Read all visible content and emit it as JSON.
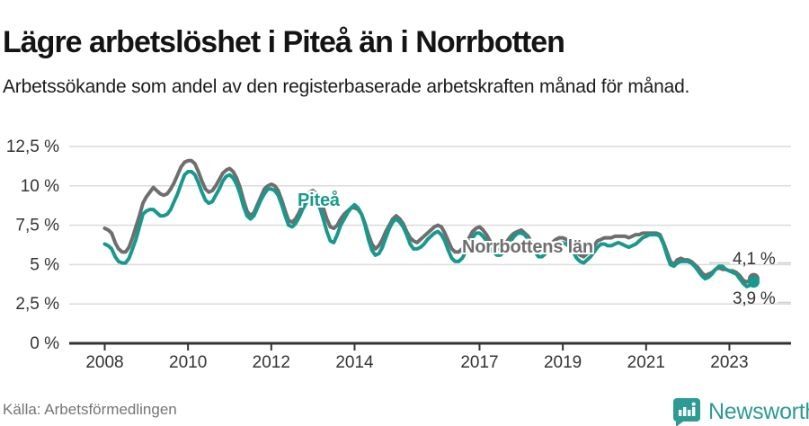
{
  "header": {
    "title": "Lägre arbetslöshet i Piteå än i Norrbotten",
    "subtitle": "Arbetssökande som andel av den registerbaserade arbetskraften månad för månad."
  },
  "chart_data": {
    "type": "line",
    "unit": "%",
    "frequency": "monthly",
    "x_start": "2008-01",
    "x_end": "2023-08",
    "ylim": [
      0,
      12.5
    ],
    "grid": "horizontal",
    "yticks": [
      {
        "value": 0,
        "label": "0 %"
      },
      {
        "value": 2.5,
        "label": "2,5 %"
      },
      {
        "value": 5,
        "label": "5 %"
      },
      {
        "value": 7.5,
        "label": "7,5 %"
      },
      {
        "value": 10,
        "label": "10 %"
      },
      {
        "value": 12.5,
        "label": "12,5 %"
      }
    ],
    "xticks": [
      {
        "year": 2008,
        "label": "2008"
      },
      {
        "year": 2010,
        "label": "2010"
      },
      {
        "year": 2012,
        "label": "2012"
      },
      {
        "year": 2014,
        "label": "2014"
      },
      {
        "year": 2017,
        "label": "2017"
      },
      {
        "year": 2019,
        "label": "2019"
      },
      {
        "year": 2021,
        "label": "2021"
      },
      {
        "year": 2023,
        "label": "2023"
      }
    ],
    "series": [
      {
        "name": "Norrbottens län",
        "color": "#6E6E6E",
        "end_label": "4,1 %",
        "end_value": 4.1,
        "values": [
          7.3,
          7.2,
          7.0,
          6.4,
          6.0,
          5.8,
          5.8,
          6.1,
          6.7,
          7.4,
          8.1,
          8.9,
          9.3,
          9.6,
          9.9,
          9.7,
          9.5,
          9.4,
          9.5,
          9.8,
          10.2,
          10.7,
          11.2,
          11.5,
          11.6,
          11.6,
          11.4,
          10.9,
          10.3,
          9.8,
          9.6,
          9.7,
          10.0,
          10.4,
          10.8,
          11.0,
          11.1,
          10.9,
          10.5,
          9.9,
          9.1,
          8.4,
          8.1,
          8.3,
          8.8,
          9.3,
          9.8,
          10.0,
          10.1,
          10.0,
          9.7,
          9.1,
          8.4,
          7.8,
          7.7,
          7.9,
          8.3,
          8.8,
          9.3,
          9.6,
          9.7,
          9.5,
          9.1,
          8.6,
          7.9,
          7.4,
          7.3,
          7.5,
          7.9,
          8.2,
          8.4,
          8.6,
          8.6,
          8.5,
          8.2,
          7.6,
          6.9,
          6.3,
          6.0,
          6.2,
          6.6,
          7.1,
          7.5,
          7.9,
          8.1,
          7.9,
          7.6,
          7.1,
          6.7,
          6.5,
          6.4,
          6.6,
          6.8,
          7.0,
          7.2,
          7.4,
          7.5,
          7.4,
          7.0,
          6.5,
          6.0,
          5.8,
          5.8,
          6.0,
          6.3,
          6.7,
          7.1,
          7.3,
          7.4,
          7.2,
          6.9,
          6.5,
          6.2,
          6.0,
          6.0,
          6.2,
          6.5,
          6.8,
          7.0,
          7.1,
          7.2,
          7.0,
          6.8,
          6.4,
          6.1,
          5.9,
          5.9,
          6.0,
          6.2,
          6.4,
          6.6,
          6.7,
          6.7,
          6.6,
          6.4,
          6.1,
          5.8,
          5.6,
          5.5,
          5.7,
          5.9,
          6.2,
          6.5,
          6.6,
          6.7,
          6.7,
          6.7,
          6.8,
          6.8,
          6.8,
          6.8,
          6.7,
          6.8,
          6.9,
          6.9,
          7.0,
          7.0,
          7.0,
          7.0,
          7.0,
          6.9,
          6.4,
          5.8,
          5.2,
          5.0,
          5.3,
          5.4,
          5.3,
          5.3,
          5.2,
          5.0,
          4.8,
          4.5,
          4.3,
          4.4,
          4.5,
          4.7,
          4.8,
          4.7,
          4.7,
          4.6,
          4.6,
          4.5,
          4.3,
          4.0,
          3.9,
          4.0,
          4.1
        ]
      },
      {
        "name": "Piteå",
        "color": "#18998D",
        "end_label": "3,9 %",
        "end_value": 3.9,
        "values": [
          6.3,
          6.2,
          6.0,
          5.5,
          5.2,
          5.1,
          5.1,
          5.4,
          6.0,
          6.6,
          7.4,
          8.2,
          8.4,
          8.5,
          8.5,
          8.3,
          8.1,
          8.1,
          8.2,
          8.5,
          9.0,
          9.5,
          10.1,
          10.7,
          10.9,
          10.9,
          10.7,
          10.2,
          9.6,
          9.1,
          8.9,
          9.0,
          9.4,
          9.8,
          10.3,
          10.6,
          10.7,
          10.5,
          10.1,
          9.5,
          8.7,
          8.1,
          7.9,
          8.1,
          8.6,
          9.1,
          9.5,
          9.8,
          9.8,
          9.7,
          9.4,
          8.8,
          8.1,
          7.5,
          7.4,
          7.6,
          8.0,
          8.5,
          8.9,
          9.2,
          9.2,
          9.0,
          8.6,
          7.9,
          7.1,
          6.5,
          6.4,
          6.9,
          7.5,
          7.9,
          8.3,
          8.6,
          8.8,
          8.6,
          8.2,
          7.5,
          6.6,
          5.9,
          5.6,
          5.7,
          6.1,
          6.7,
          7.3,
          7.7,
          7.9,
          7.7,
          7.4,
          6.9,
          6.3,
          6.0,
          6.0,
          6.1,
          6.3,
          6.6,
          6.8,
          7.0,
          7.1,
          6.9,
          6.5,
          5.9,
          5.4,
          5.2,
          5.2,
          5.4,
          5.8,
          6.2,
          6.7,
          7.0,
          7.0,
          6.8,
          6.5,
          6.1,
          5.8,
          5.6,
          5.6,
          5.8,
          6.2,
          6.5,
          6.8,
          7.0,
          7.0,
          6.9,
          6.6,
          6.2,
          5.8,
          5.5,
          5.5,
          5.7,
          5.9,
          6.1,
          6.3,
          6.4,
          6.4,
          6.3,
          6.1,
          5.8,
          5.4,
          5.2,
          5.1,
          5.3,
          5.5,
          5.8,
          6.1,
          6.3,
          6.3,
          6.2,
          6.2,
          6.3,
          6.4,
          6.3,
          6.2,
          6.1,
          6.2,
          6.3,
          6.5,
          6.7,
          6.8,
          6.9,
          6.9,
          6.9,
          6.8,
          6.3,
          5.6,
          5.0,
          4.9,
          5.1,
          5.2,
          5.2,
          5.2,
          5.1,
          4.9,
          4.6,
          4.3,
          4.1,
          4.2,
          4.4,
          4.7,
          4.9,
          4.9,
          4.7,
          4.6,
          4.5,
          4.4,
          4.1,
          3.8,
          3.6,
          3.7,
          3.9
        ]
      }
    ]
  },
  "footer": {
    "source": "Källa: Arbetsförmedlingen",
    "brand": "Newsworthy"
  },
  "colors": {
    "pitea": "#18998D",
    "norrbotten": "#6E6E6E",
    "axis": "#333333",
    "gridline": "#DBDBDB",
    "brand_teal": "#2D9B93"
  }
}
